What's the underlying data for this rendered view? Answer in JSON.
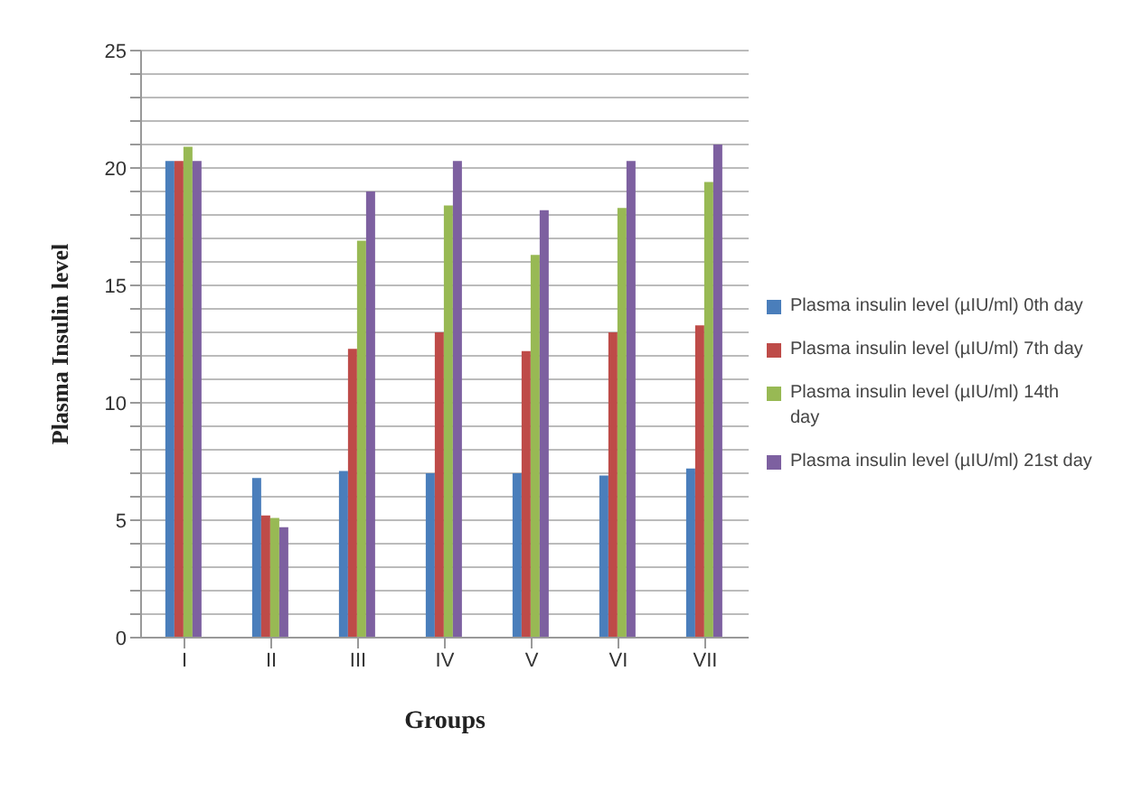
{
  "chart_data": {
    "type": "bar",
    "xlabel": "Groups",
    "ylabel": "Plasma Insulin level",
    "categories": [
      "I",
      "II",
      "III",
      "IV",
      "V",
      "VI",
      "VII"
    ],
    "series": [
      {
        "name": "Plasma insulin level (µIU/ml) 0th day",
        "color": "#4a7ebb",
        "values": [
          20.3,
          6.8,
          7.1,
          7.0,
          7.0,
          6.9,
          7.2
        ]
      },
      {
        "name": "Plasma insulin level (µIU/ml) 7th day",
        "color": "#be4b48",
        "values": [
          20.3,
          5.2,
          12.3,
          13.0,
          12.2,
          13.0,
          13.3
        ]
      },
      {
        "name": "Plasma insulin level (µIU/ml) 14th day",
        "color": "#98b954",
        "values": [
          20.9,
          5.1,
          16.9,
          18.4,
          16.3,
          18.3,
          19.4
        ]
      },
      {
        "name": "Plasma insulin level (µIU/ml) 21st day",
        "color": "#7d60a0",
        "values": [
          20.3,
          4.7,
          19.0,
          20.3,
          18.2,
          20.3,
          21.0
        ]
      }
    ],
    "ylim": [
      0,
      25
    ],
    "yticks": [
      0,
      {
        "value": 1,
        "label": null
      },
      {
        "value": 2,
        "label": null
      },
      {
        "value": 3,
        "label": null
      },
      {
        "value": 4,
        "label": null
      },
      5,
      {
        "value": 6,
        "label": null
      },
      {
        "value": 7,
        "label": null
      },
      {
        "value": 8,
        "label": null
      },
      {
        "value": 9,
        "label": null
      },
      10,
      {
        "value": 11,
        "label": null
      },
      {
        "value": 12,
        "label": null
      },
      {
        "value": 13,
        "label": null
      },
      {
        "value": 14,
        "label": null
      },
      15,
      {
        "value": 16,
        "label": null
      },
      {
        "value": 17,
        "label": null
      },
      {
        "value": 18,
        "label": null
      },
      {
        "value": 19,
        "label": null
      },
      20,
      {
        "value": 21,
        "label": null
      },
      {
        "value": 22,
        "label": null
      },
      {
        "value": 23,
        "label": null
      },
      {
        "value": 24,
        "label": null
      },
      25
    ],
    "grid": "y",
    "legend": "right"
  }
}
